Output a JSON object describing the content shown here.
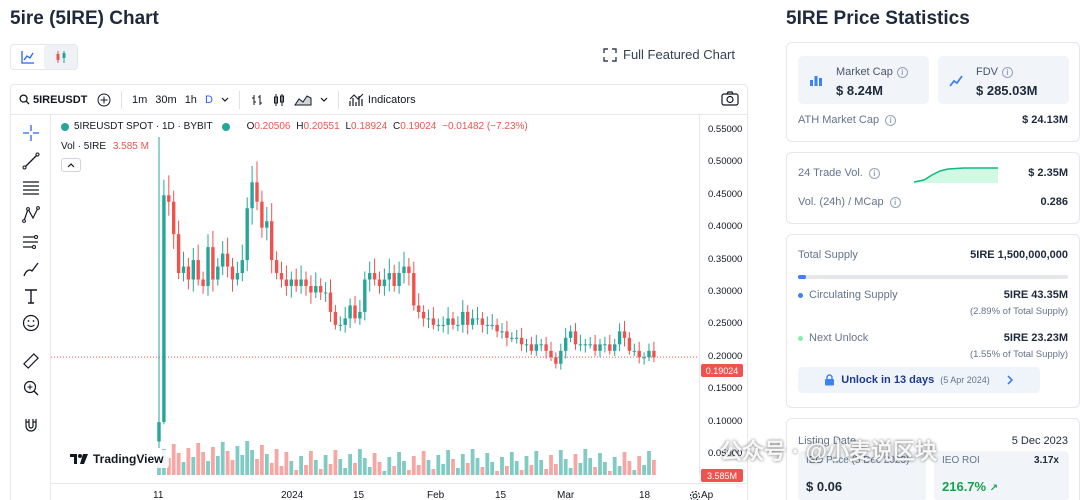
{
  "page_title": "5ire (5IRE) Chart",
  "stats_title": "5IRE Price Statistics",
  "full_featured_chart": "Full Featured Chart",
  "toolbar": {
    "symbol": "5IREUSDT",
    "intervals": [
      "1m",
      "30m",
      "1h",
      "D"
    ],
    "indicators": "Indicators"
  },
  "chart": {
    "legend_symbol": "5IREUSDT SPOT · 1D · BYBIT",
    "o_label": "O",
    "o": "0.20506",
    "h_label": "H",
    "h": "0.20551",
    "l_label": "L",
    "l": "0.18924",
    "c_label": "C",
    "c": "0.19024",
    "change": "−0.01482 (−7.23%)",
    "vol_label": "Vol · 5IRE",
    "vol_value": "3.585 M",
    "price_ticks": [
      "0.55000",
      "0.50000",
      "0.45000",
      "0.40000",
      "0.35000",
      "0.30000",
      "0.25000",
      "0.20000",
      "0.15000",
      "0.10000",
      "0.05000"
    ],
    "current_price_tag": "0.19024",
    "volume_tag": "3.585M",
    "time_labels": [
      "11",
      "2024",
      "15",
      "Feb",
      "15",
      "Mar",
      "18",
      "Ap"
    ],
    "watermark": "TradingView",
    "colors": {
      "up": "#26a69a",
      "down": "#ef5350",
      "vol_up": "#80cbc4",
      "vol_down": "#f7a6a4"
    }
  },
  "chart_data": {
    "type": "candlestick",
    "interval": "1D",
    "exchange": "BYBIT",
    "pair": "5IREUSDT",
    "last_candle": {
      "open": 0.20506,
      "high": 0.20551,
      "low": 0.18924,
      "close": 0.19024
    },
    "ylim": [
      0.05,
      0.55
    ],
    "close_series_approx": [
      0.09,
      0.44,
      0.43,
      0.38,
      0.32,
      0.33,
      0.31,
      0.34,
      0.31,
      0.3,
      0.36,
      0.31,
      0.33,
      0.35,
      0.33,
      0.31,
      0.32,
      0.34,
      0.42,
      0.46,
      0.43,
      0.39,
      0.4,
      0.34,
      0.32,
      0.31,
      0.3,
      0.31,
      0.3,
      0.31,
      0.3,
      0.29,
      0.3,
      0.29,
      0.29,
      0.26,
      0.24,
      0.24,
      0.25,
      0.27,
      0.25,
      0.26,
      0.31,
      0.32,
      0.31,
      0.3,
      0.31,
      0.32,
      0.3,
      0.32,
      0.33,
      0.32,
      0.27,
      0.26,
      0.25,
      0.25,
      0.24,
      0.24,
      0.24,
      0.25,
      0.24,
      0.24,
      0.26,
      0.24,
      0.25,
      0.25,
      0.24,
      0.24,
      0.24,
      0.23,
      0.23,
      0.22,
      0.22,
      0.22,
      0.21,
      0.21,
      0.2,
      0.21,
      0.21,
      0.2,
      0.19,
      0.18,
      0.2,
      0.22,
      0.23,
      0.21,
      0.21,
      0.21,
      0.21,
      0.2,
      0.21,
      0.21,
      0.2,
      0.21,
      0.23,
      0.22,
      0.2,
      0.2,
      0.19,
      0.19,
      0.2,
      0.19
    ],
    "volume_scale_hint": "last volume 3.585M"
  },
  "stats": {
    "market_cap_label": "Market Cap",
    "market_cap_value": "$ 8.24M",
    "fdv_label": "FDV",
    "fdv_value": "$ 285.03M",
    "ath_market_cap_label": "ATH Market Cap",
    "ath_market_cap_value": "$ 24.13M",
    "trade_vol_label": "24 Trade Vol.",
    "trade_vol_value": "$ 2.35M",
    "vol_mcap_label": "Vol. (24h) / MCap",
    "vol_mcap_value": "0.286",
    "total_supply_label": "Total Supply",
    "total_supply_value": "5IRE 1,500,000,000",
    "circulating_fraction": 0.0289,
    "circulating_label": "Circulating Supply",
    "circulating_value": "5IRE 43.35M",
    "circulating_note": "(2.89% of Total Supply)",
    "next_unlock_label": "Next Unlock",
    "next_unlock_value": "5IRE 23.23M",
    "next_unlock_note": "(1.55% of Total Supply)",
    "unlock_button": "Unlock in 13 days",
    "unlock_date": "(5 Apr 2024)",
    "ieo_date_label": "Listing Date",
    "ieo_date_value": "5 Dec 2023",
    "ieo_price_label": "IEO Price",
    "ieo_price_value": "$ 0.06",
    "ieo_roi_label": "IEO ROI",
    "ieo_roi_value": "3.17x",
    "ieo_roi_pct": "216.7%",
    "ieo_sub_date": "(5 Dec 2023)"
  },
  "watermark_text": "公众号 · @小麦说区块"
}
